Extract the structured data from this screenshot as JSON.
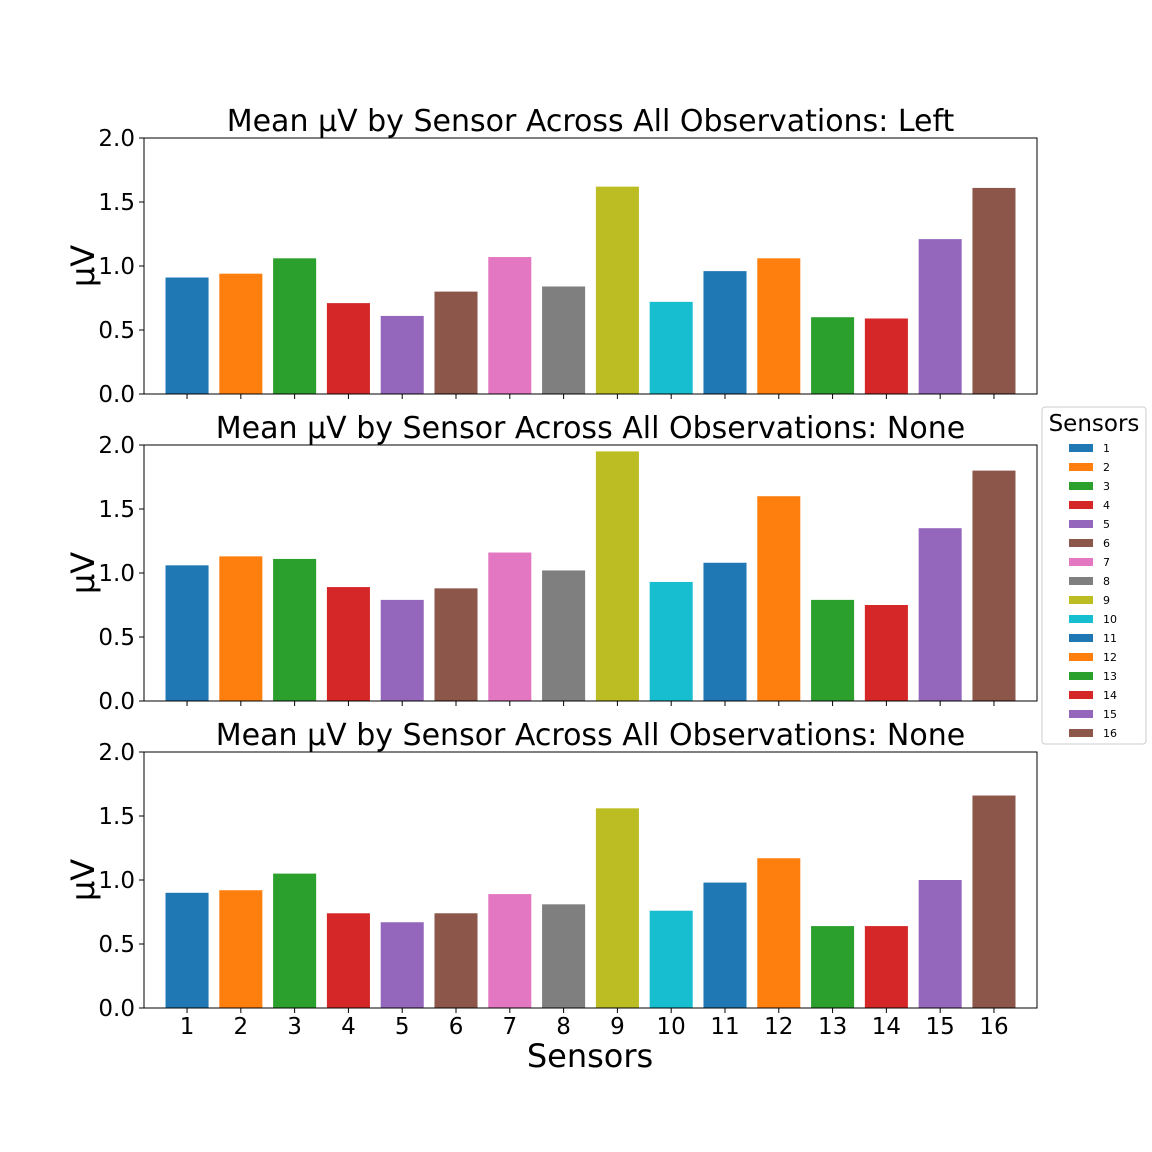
{
  "chart_data": {
    "type": "bar",
    "categories": [
      "1",
      "2",
      "3",
      "4",
      "5",
      "6",
      "7",
      "8",
      "9",
      "10",
      "11",
      "12",
      "13",
      "14",
      "15",
      "16"
    ],
    "colors": [
      "#1f77b4",
      "#ff7f0e",
      "#2ca02c",
      "#d62728",
      "#9467bd",
      "#8c564b",
      "#e377c2",
      "#7f7f7f",
      "#bcbd22",
      "#17becf",
      "#1f77b4",
      "#ff7f0e",
      "#2ca02c",
      "#d62728",
      "#9467bd",
      "#8c564b"
    ],
    "xlabel": "Sensors",
    "ylim": [
      0,
      2.0
    ],
    "yticks": [
      "0.0",
      "0.5",
      "1.0",
      "1.5",
      "2.0"
    ],
    "grid": false,
    "legend": {
      "title": "Sensors",
      "placement": "right",
      "entries": [
        "1",
        "2",
        "3",
        "4",
        "5",
        "6",
        "7",
        "8",
        "9",
        "10",
        "11",
        "12",
        "13",
        "14",
        "15",
        "16"
      ]
    },
    "panels": [
      {
        "title": "Mean µV by Sensor Across All Observations: Left",
        "ylabel": "µV",
        "values": [
          0.91,
          0.94,
          1.06,
          0.71,
          0.61,
          0.8,
          1.07,
          0.84,
          1.62,
          0.72,
          0.96,
          1.06,
          0.6,
          0.59,
          1.21,
          1.61
        ]
      },
      {
        "title": "Mean µV by Sensor Across All Observations: None",
        "ylabel": "µV",
        "values": [
          1.06,
          1.13,
          1.11,
          0.89,
          0.79,
          0.88,
          1.16,
          1.02,
          1.95,
          0.93,
          1.08,
          1.6,
          0.79,
          0.75,
          1.35,
          1.8
        ]
      },
      {
        "title": "Mean µV by Sensor Across All Observations: None",
        "ylabel": "µV",
        "values": [
          0.9,
          0.92,
          1.05,
          0.74,
          0.67,
          0.74,
          0.89,
          0.81,
          1.56,
          0.76,
          0.98,
          1.17,
          0.64,
          0.64,
          1.0,
          1.66
        ]
      }
    ]
  }
}
